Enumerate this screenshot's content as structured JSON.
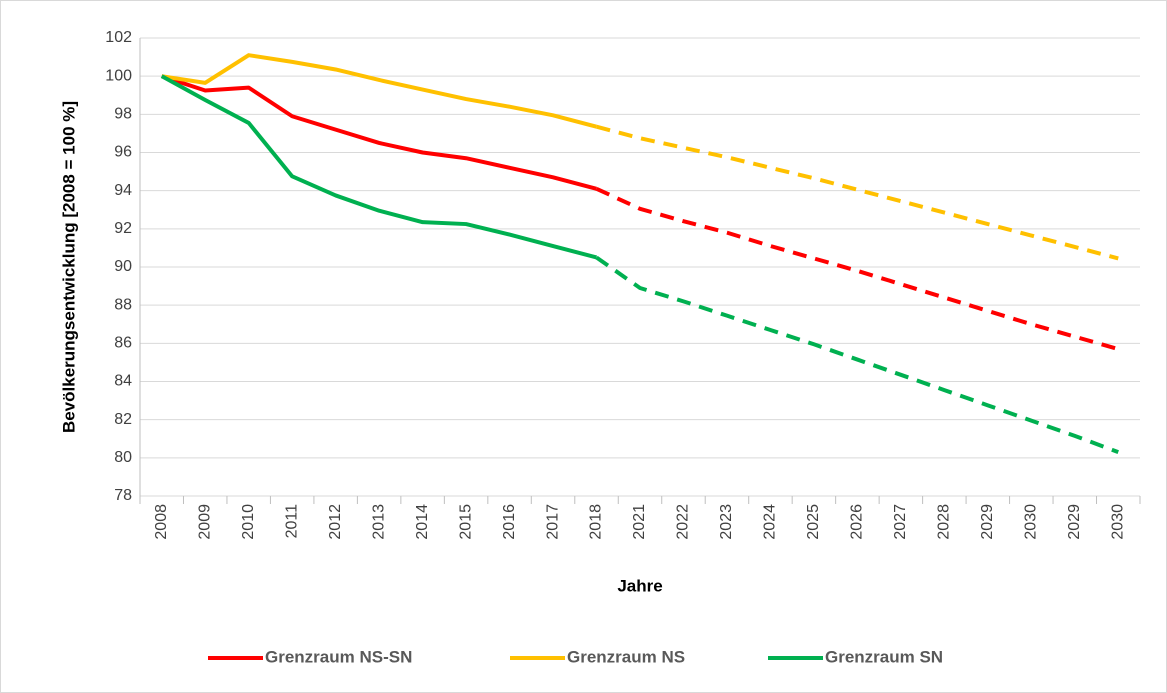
{
  "chart_data": {
    "type": "line",
    "ylabel": "Bevölkerungsentwicklung [2008 = 100 %]",
    "xlabel": "Jahre",
    "categories": [
      "2008",
      "2009",
      "2010",
      "2011",
      "2012",
      "2013",
      "2014",
      "2015",
      "2016",
      "2017",
      "2018",
      "2021",
      "2022",
      "2023",
      "2024",
      "2025",
      "2026",
      "2027",
      "2028",
      "2029",
      "2030",
      "2029",
      "2030"
    ],
    "ylim": [
      78,
      102
    ],
    "yticks": [
      78,
      80,
      82,
      84,
      86,
      88,
      90,
      92,
      94,
      96,
      98,
      100,
      102
    ],
    "grid": true,
    "legend": "bottom",
    "dashed_from_index": 10,
    "series": [
      {
        "name": "Grenzraum NS-SN",
        "color": "#ff0000",
        "values": [
          100,
          99.25,
          99.4,
          97.9,
          97.2,
          96.5,
          96.0,
          95.7,
          95.2,
          94.7,
          94.1,
          93.05,
          92.4,
          91.8,
          91.1,
          90.45,
          89.8,
          89.1,
          88.4,
          87.7,
          87.0,
          86.35,
          85.7
        ]
      },
      {
        "name": "Grenzraum NS",
        "color": "#ffc000",
        "values": [
          100,
          99.65,
          101.1,
          100.75,
          100.35,
          99.8,
          99.3,
          98.8,
          98.4,
          97.95,
          97.35,
          96.75,
          96.25,
          95.75,
          95.2,
          94.65,
          94.05,
          93.45,
          92.85,
          92.25,
          91.65,
          91.05,
          90.45
        ]
      },
      {
        "name": "Grenzraum SN",
        "color": "#00b050",
        "values": [
          100,
          98.75,
          97.55,
          94.75,
          93.75,
          92.95,
          92.35,
          92.25,
          91.7,
          91.1,
          90.5,
          88.9,
          88.2,
          87.45,
          86.7,
          85.95,
          85.15,
          84.35,
          83.55,
          82.75,
          81.95,
          81.15,
          80.3
        ]
      }
    ]
  }
}
